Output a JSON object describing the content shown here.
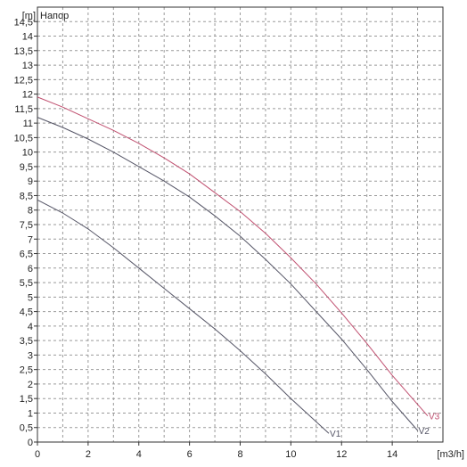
{
  "chart_data": {
    "type": "line",
    "title": "Напор",
    "ylabel": "[m]",
    "xlabel": "[m3/h]",
    "xlim": [
      0,
      16
    ],
    "ylim": [
      0,
      15
    ],
    "x_ticks": [
      0,
      2,
      4,
      6,
      8,
      10,
      12,
      14
    ],
    "x_tick_labels": [
      "0",
      "2",
      "4",
      "6",
      "8",
      "10",
      "12",
      "14"
    ],
    "x_grid_step": 1,
    "y_ticks": [
      0,
      0.5,
      1,
      1.5,
      2,
      2.5,
      3,
      3.5,
      4,
      4.5,
      5,
      5.5,
      6,
      6.5,
      7,
      7.5,
      8,
      8.5,
      9,
      9.5,
      10,
      10.5,
      11,
      11.5,
      12,
      12.5,
      13,
      13.5,
      14,
      14.5
    ],
    "y_tick_labels": [
      "0",
      "0,5",
      "1",
      "1,5",
      "2",
      "2,5",
      "3",
      "3,5",
      "4",
      "4,5",
      "5",
      "5,5",
      "6",
      "6,5",
      "7",
      "7,5",
      "8",
      "8,5",
      "9",
      "9,5",
      "10",
      "10,5",
      "11",
      "11,5",
      "12",
      "12,5",
      "13",
      "13,5",
      "14",
      "14,5"
    ],
    "grid": true,
    "series": [
      {
        "name": "V1",
        "color": "#555566",
        "x": [
          0,
          1,
          2,
          3,
          4,
          5,
          6,
          7,
          8,
          9,
          10,
          11,
          11.5
        ],
        "y": [
          8.35,
          7.9,
          7.35,
          6.7,
          6.0,
          5.3,
          4.6,
          3.9,
          3.15,
          2.35,
          1.5,
          0.7,
          0.3
        ]
      },
      {
        "name": "V2",
        "color": "#555566",
        "x": [
          0,
          1,
          2,
          3,
          4,
          5,
          6,
          7,
          8,
          9,
          10,
          11,
          12,
          13,
          14,
          15
        ],
        "y": [
          11.2,
          10.85,
          10.45,
          10.0,
          9.5,
          9.0,
          8.45,
          7.8,
          7.1,
          6.3,
          5.45,
          4.5,
          3.55,
          2.5,
          1.4,
          0.4
        ]
      },
      {
        "name": "V3",
        "color": "#c05070",
        "x": [
          0,
          1,
          2,
          3,
          4,
          5,
          6,
          7,
          8,
          9,
          10,
          11,
          12,
          13,
          14,
          15.4
        ],
        "y": [
          11.9,
          11.55,
          11.15,
          10.75,
          10.3,
          9.8,
          9.25,
          8.6,
          7.95,
          7.2,
          6.35,
          5.45,
          4.45,
          3.4,
          2.3,
          0.9
        ]
      }
    ]
  }
}
